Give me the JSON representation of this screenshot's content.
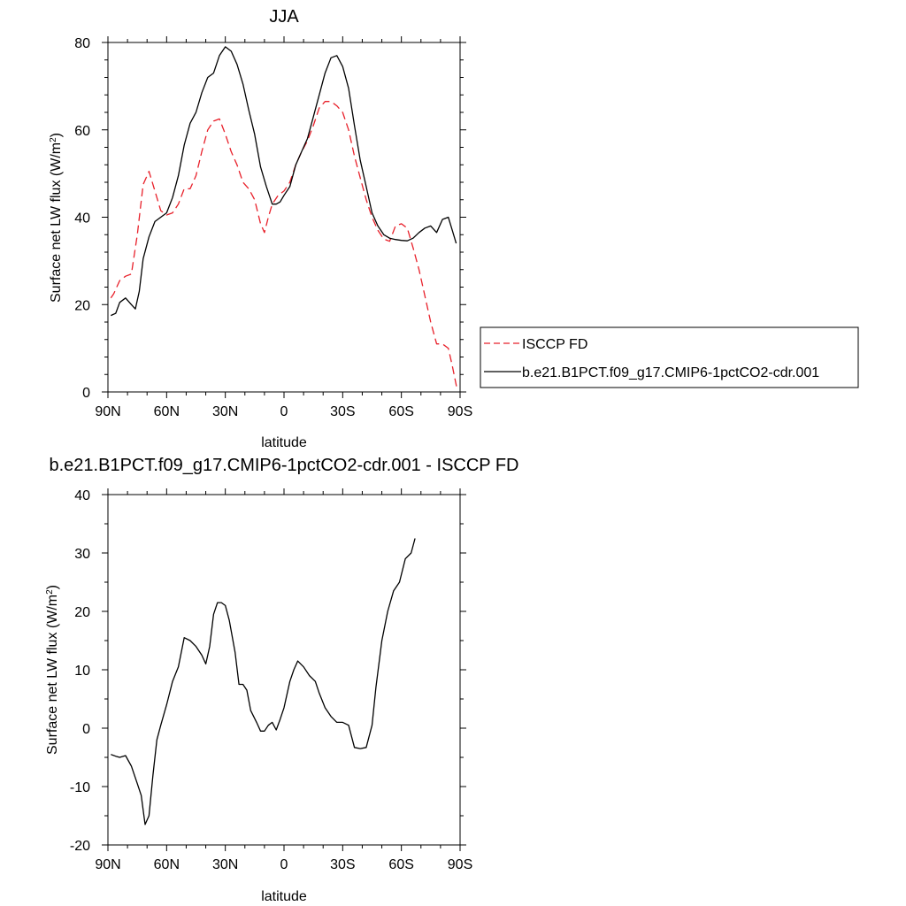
{
  "colors": {
    "model": "#000000",
    "obs": "#e8202a"
  },
  "chart_data": [
    {
      "type": "line",
      "title": "JJA",
      "xlabel": "latitude",
      "ylabel_main": "Surface net LW flux (W/m",
      "ylabel_sup": "2",
      "ylabel_end": ")",
      "xlim": [
        90,
        -90
      ],
      "ylim": [
        0,
        80
      ],
      "xticks": [
        {
          "v": 90,
          "label": "90N"
        },
        {
          "v": 60,
          "label": "60N"
        },
        {
          "v": 30,
          "label": "30N"
        },
        {
          "v": 0,
          "label": "0"
        },
        {
          "v": -30,
          "label": "30S"
        },
        {
          "v": -60,
          "label": "60S"
        },
        {
          "v": -90,
          "label": "90S"
        }
      ],
      "yticks": [
        {
          "v": 0,
          "label": "0"
        },
        {
          "v": 20,
          "label": "20"
        },
        {
          "v": 40,
          "label": "40"
        },
        {
          "v": 60,
          "label": "60"
        },
        {
          "v": 80,
          "label": "80"
        }
      ],
      "legend_position": "right",
      "series": [
        {
          "name": "ISCCP FD",
          "style": "dashed",
          "color_key": "obs",
          "points": [
            [
              88.5,
              21.5
            ],
            [
              87,
              22.5
            ],
            [
              84,
              25.5
            ],
            [
              81,
              26.5
            ],
            [
              78,
              27
            ],
            [
              75,
              36
            ],
            [
              72,
              47.5
            ],
            [
              69,
              50.5
            ],
            [
              66,
              46
            ],
            [
              63,
              41.5
            ],
            [
              60,
              40.5
            ],
            [
              57,
              41
            ],
            [
              54,
              43
            ],
            [
              51,
              46.5
            ],
            [
              48,
              46.5
            ],
            [
              45,
              49.5
            ],
            [
              42,
              55
            ],
            [
              39,
              60
            ],
            [
              36,
              62
            ],
            [
              33,
              62.5
            ],
            [
              30,
              59
            ],
            [
              27,
              55
            ],
            [
              24,
              52
            ],
            [
              21,
              48
            ],
            [
              18,
              46.5
            ],
            [
              15,
              44
            ],
            [
              12,
              38.5
            ],
            [
              10,
              36.5
            ],
            [
              8,
              40
            ],
            [
              6,
              43
            ],
            [
              3,
              45
            ],
            [
              0,
              46
            ],
            [
              -3,
              48
            ],
            [
              -6,
              52
            ],
            [
              -9,
              55
            ],
            [
              -12,
              57.5
            ],
            [
              -15,
              61
            ],
            [
              -18,
              65
            ],
            [
              -21,
              66.5
            ],
            [
              -24,
              66.5
            ],
            [
              -27,
              65.5
            ],
            [
              -30,
              64
            ],
            [
              -33,
              60
            ],
            [
              -36,
              54
            ],
            [
              -39,
              49
            ],
            [
              -42,
              44
            ],
            [
              -45,
              40
            ],
            [
              -48,
              37
            ],
            [
              -51,
              35
            ],
            [
              -54,
              34.5
            ],
            [
              -57,
              38
            ],
            [
              -60,
              38.5
            ],
            [
              -63,
              37.5
            ],
            [
              -66,
              33
            ],
            [
              -69,
              28
            ],
            [
              -72,
              22
            ],
            [
              -75,
              16
            ],
            [
              -78,
              11
            ],
            [
              -81,
              11
            ],
            [
              -84,
              10
            ],
            [
              -86,
              6
            ],
            [
              -88.5,
              0.5
            ]
          ]
        },
        {
          "name": "b.e21.B1PCT.f09_g17.CMIP6-1pctCO2-cdr.001",
          "style": "solid",
          "color_key": "model",
          "points": [
            [
              88.5,
              17.5
            ],
            [
              86,
              18
            ],
            [
              84,
              20.5
            ],
            [
              81,
              21.5
            ],
            [
              78,
              20
            ],
            [
              76,
              19
            ],
            [
              74,
              23
            ],
            [
              72,
              30.5
            ],
            [
              69,
              35.5
            ],
            [
              66,
              39
            ],
            [
              63,
              40
            ],
            [
              60,
              41
            ],
            [
              57,
              44.5
            ],
            [
              54,
              49.5
            ],
            [
              51,
              56.5
            ],
            [
              48,
              61.5
            ],
            [
              45,
              64
            ],
            [
              42,
              68.5
            ],
            [
              39,
              72
            ],
            [
              36,
              73
            ],
            [
              33,
              77
            ],
            [
              30,
              79
            ],
            [
              27,
              78
            ],
            [
              24,
              75
            ],
            [
              21,
              70.5
            ],
            [
              18,
              64.5
            ],
            [
              15,
              59
            ],
            [
              12,
              51.5
            ],
            [
              9,
              47
            ],
            [
              6,
              43
            ],
            [
              4,
              43
            ],
            [
              2,
              43.5
            ],
            [
              0,
              45
            ],
            [
              -3,
              47
            ],
            [
              -6,
              52
            ],
            [
              -9,
              55
            ],
            [
              -12,
              58
            ],
            [
              -15,
              63
            ],
            [
              -18,
              68
            ],
            [
              -21,
              73
            ],
            [
              -24,
              76.5
            ],
            [
              -27,
              77
            ],
            [
              -30,
              74.5
            ],
            [
              -33,
              69.5
            ],
            [
              -36,
              61
            ],
            [
              -39,
              53
            ],
            [
              -42,
              47
            ],
            [
              -45,
              41
            ],
            [
              -48,
              38
            ],
            [
              -51,
              36
            ],
            [
              -54,
              35.2
            ],
            [
              -57,
              34.9
            ],
            [
              -60,
              34.7
            ],
            [
              -63,
              34.6
            ],
            [
              -66,
              35.2
            ],
            [
              -69,
              36.5
            ],
            [
              -72,
              37.5
            ],
            [
              -75,
              38
            ],
            [
              -78,
              36.5
            ],
            [
              -81,
              39.5
            ],
            [
              -84,
              40
            ],
            [
              -86,
              37
            ],
            [
              -88,
              34
            ]
          ]
        }
      ]
    },
    {
      "type": "line",
      "title": "b.e21.B1PCT.f09_g17.CMIP6-1pctCO2-cdr.001 - ISCCP FD",
      "xlabel": "latitude",
      "ylabel_main": "Surface net LW flux (W/m",
      "ylabel_sup": "2",
      "ylabel_end": ")",
      "xlim": [
        90,
        -90
      ],
      "ylim": [
        -20,
        40
      ],
      "xticks": [
        {
          "v": 90,
          "label": "90N"
        },
        {
          "v": 60,
          "label": "60N"
        },
        {
          "v": 30,
          "label": "30N"
        },
        {
          "v": 0,
          "label": "0"
        },
        {
          "v": -30,
          "label": "30S"
        },
        {
          "v": -60,
          "label": "60S"
        },
        {
          "v": -90,
          "label": "90S"
        }
      ],
      "yticks": [
        {
          "v": -20,
          "label": "-20"
        },
        {
          "v": -10,
          "label": "-10"
        },
        {
          "v": 0,
          "label": "0"
        },
        {
          "v": 10,
          "label": "10"
        },
        {
          "v": 20,
          "label": "20"
        },
        {
          "v": 30,
          "label": "30"
        },
        {
          "v": 40,
          "label": "40"
        }
      ],
      "series": [
        {
          "style": "solid",
          "color_key": "model",
          "points": [
            [
              88.5,
              -4.5
            ],
            [
              86,
              -4.8
            ],
            [
              84,
              -5
            ],
            [
              81,
              -4.7
            ],
            [
              78,
              -6.5
            ],
            [
              75,
              -9.5
            ],
            [
              73,
              -11.5
            ],
            [
              71,
              -16.5
            ],
            [
              69,
              -15
            ],
            [
              67,
              -8
            ],
            [
              65,
              -2
            ],
            [
              63,
              0.5
            ],
            [
              60,
              4
            ],
            [
              57,
              8
            ],
            [
              54,
              10.5
            ],
            [
              51,
              15.5
            ],
            [
              48,
              15
            ],
            [
              45,
              14
            ],
            [
              42,
              12.5
            ],
            [
              40,
              11
            ],
            [
              38,
              14
            ],
            [
              36,
              19.5
            ],
            [
              34,
              21.5
            ],
            [
              32,
              21.5
            ],
            [
              30,
              21
            ],
            [
              28,
              18.5
            ],
            [
              25,
              13
            ],
            [
              23,
              7.5
            ],
            [
              21,
              7.5
            ],
            [
              19,
              6.5
            ],
            [
              17,
              3
            ],
            [
              14,
              1
            ],
            [
              12,
              -0.5
            ],
            [
              10,
              -0.5
            ],
            [
              8,
              0.5
            ],
            [
              6,
              1
            ],
            [
              4,
              -0.3
            ],
            [
              2,
              1.5
            ],
            [
              0,
              3.5
            ],
            [
              -3,
              8
            ],
            [
              -5,
              10
            ],
            [
              -7,
              11.5
            ],
            [
              -10,
              10.5
            ],
            [
              -13,
              9
            ],
            [
              -16,
              8
            ],
            [
              -18,
              6
            ],
            [
              -21,
              3.5
            ],
            [
              -24,
              2
            ],
            [
              -27,
              1
            ],
            [
              -30,
              1
            ],
            [
              -33,
              0.5
            ],
            [
              -36,
              -3.3
            ],
            [
              -39,
              -3.5
            ],
            [
              -42,
              -3.3
            ],
            [
              -45,
              0.5
            ],
            [
              -47,
              7
            ],
            [
              -50,
              15
            ],
            [
              -53,
              20
            ],
            [
              -56,
              23.5
            ],
            [
              -59,
              25
            ],
            [
              -62,
              29
            ],
            [
              -65,
              30
            ],
            [
              -67,
              32.5
            ]
          ]
        }
      ]
    }
  ]
}
